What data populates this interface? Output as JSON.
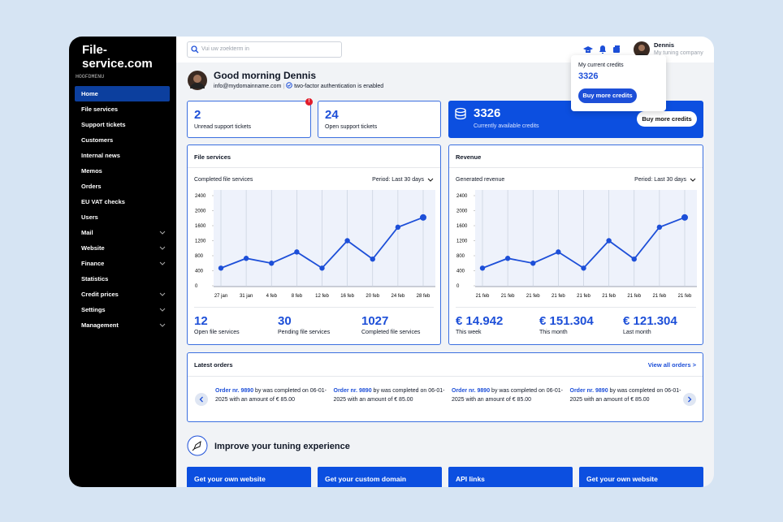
{
  "brand": "File-service.com",
  "search_placeholder": "Vui uw zoekterm in",
  "user": {
    "name": "Dennis",
    "company": "My tuning company"
  },
  "credits_popup": {
    "label": "My current credits",
    "value": 3326,
    "button": "Buy more credits"
  },
  "sidebar": {
    "heading": "HOOFDMENU",
    "items": [
      {
        "label": "Home",
        "active": true,
        "expandable": false
      },
      {
        "label": "File services",
        "active": false,
        "expandable": false
      },
      {
        "label": "Support tickets",
        "active": false,
        "expandable": false
      },
      {
        "label": "Customers",
        "active": false,
        "expandable": false
      },
      {
        "label": "Internal news",
        "active": false,
        "expandable": false
      },
      {
        "label": "Memos",
        "active": false,
        "expandable": false
      },
      {
        "label": "Orders",
        "active": false,
        "expandable": false
      },
      {
        "label": "EU VAT checks",
        "active": false,
        "expandable": false
      },
      {
        "label": "Users",
        "active": false,
        "expandable": false
      },
      {
        "label": "Mail",
        "active": false,
        "expandable": true
      },
      {
        "label": "Website",
        "active": false,
        "expandable": true
      },
      {
        "label": "Finance",
        "active": false,
        "expandable": true
      },
      {
        "label": "Statistics",
        "active": false,
        "expandable": false
      },
      {
        "label": "Credit prices",
        "active": false,
        "expandable": true
      },
      {
        "label": "Settings",
        "active": false,
        "expandable": true
      },
      {
        "label": "Management",
        "active": false,
        "expandable": true
      }
    ]
  },
  "greeting": {
    "title": "Good morning Dennis",
    "email": "info@mydomainname.com",
    "security": "two-factor authentication is enabled"
  },
  "stats": [
    {
      "value": 2,
      "label": "Unread support tickets",
      "badge": "!"
    },
    {
      "value": 24,
      "label": "Open support tickets"
    }
  ],
  "credits_card": {
    "value": 3326,
    "label": "Currently available credits",
    "button": "Buy more credits"
  },
  "chart_data": [
    {
      "type": "line",
      "title": "File services",
      "subtitle": "Completed file services",
      "period": "Period: Last 30 days",
      "categories": [
        "27 jan",
        "31 jan",
        "4 feb",
        "8 feb",
        "12 feb",
        "16 feb",
        "20 feb",
        "24 feb",
        "28 feb"
      ],
      "values": [
        470,
        730,
        600,
        900,
        470,
        1200,
        710,
        1560,
        1820
      ],
      "color": "#1d4fd8",
      "ylim": [
        0,
        2400
      ],
      "yticks": [
        0,
        400,
        800,
        1200,
        1600,
        2000,
        2400
      ],
      "grid": true,
      "summary": [
        {
          "value": 12,
          "label": "Open file services"
        },
        {
          "value": 30,
          "label": "Pending file services"
        },
        {
          "value": 1027,
          "label": "Completed file services"
        }
      ]
    },
    {
      "type": "line",
      "title": "Revenue",
      "subtitle": "Generated revenue",
      "period": "Period: Last 30 days",
      "categories": [
        "21 feb",
        "21 feb",
        "21 feb",
        "21 feb",
        "21 feb",
        "21 feb",
        "21 feb",
        "21 feb",
        "21 feb"
      ],
      "values": [
        470,
        730,
        600,
        900,
        470,
        1200,
        710,
        1560,
        1820
      ],
      "color": "#1d4fd8",
      "ylim": [
        0,
        2400
      ],
      "yticks": [
        0,
        400,
        800,
        1200,
        1600,
        2000,
        2400
      ],
      "grid": true,
      "summary": [
        {
          "value": "€ 14.942",
          "label": "This week"
        },
        {
          "value": "€ 151.304",
          "label": "This month"
        },
        {
          "value": "€ 121.304",
          "label": "Last month"
        }
      ]
    }
  ],
  "orders": {
    "title": "Latest orders",
    "link": "View all orders >",
    "items": [
      {
        "number": "Order nr. 9890",
        "text": "by was completed on 06-01-2025 with an amount of € 85.00"
      },
      {
        "number": "Order nr. 9890",
        "text": "by was completed on 06-01-2025 with an amount of € 85.00"
      },
      {
        "number": "Order nr. 9890",
        "text": "by was completed on 06-01-2025 with an amount of € 85.00"
      },
      {
        "number": "Order nr. 9890",
        "text": "by was completed on 06-01-2025 with an amount of € 85.00"
      }
    ]
  },
  "improve": {
    "title": "Improve your tuning experience",
    "cards": [
      "Get your own website",
      "Get your custom domain",
      "API links",
      "Get your own website"
    ]
  }
}
